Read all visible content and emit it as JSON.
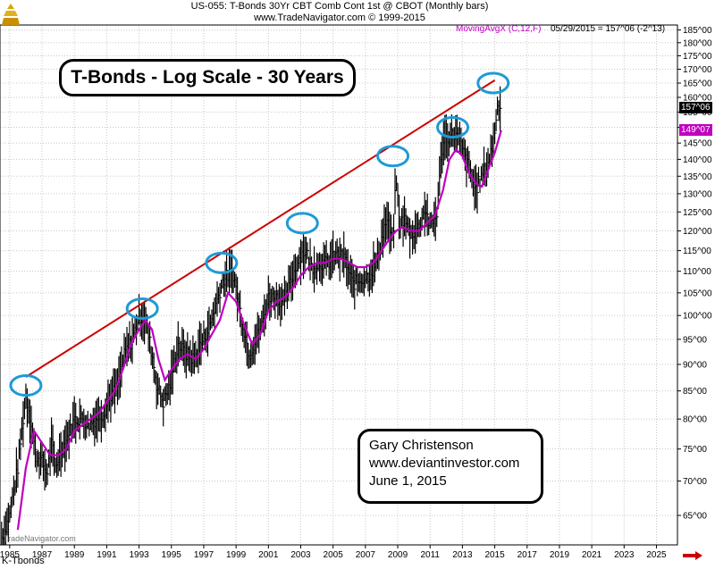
{
  "header": {
    "line1": "US-055:  T-Bonds 30Yr CBT Comb Cont 1st @ CBOT  (Monthly bars)",
    "line2": "www.TradeNavigator.com © 1999-2015"
  },
  "indicator": {
    "label": "MovingAvgX (C,12,F)",
    "value_text": "05/29/2015 = 157^06 (-2^13)"
  },
  "price_tags": {
    "last": "157^06",
    "ma": "149^07"
  },
  "title_box": "T-Bonds - Log Scale - 30 Years",
  "author": {
    "name": "Gary Christenson",
    "site": "www.deviantinvestor.com",
    "date": "June 1, 2015"
  },
  "footer_label": "K-Tbonds",
  "watermark": "TradeNavigator.com",
  "colors": {
    "bars": "#000000",
    "moving_average": "#c000c0",
    "trendline": "#cc0000",
    "circles": "#1e9ad6",
    "grid": "#c8c8c8"
  },
  "icons": {
    "logo": "gold-pyramid-icon",
    "scroll": "red-arrow-icon"
  },
  "chart_data": {
    "type": "line",
    "y_scale": "log",
    "ylim": [
      61,
      187
    ],
    "xlim": [
      1984.4,
      2026.3
    ],
    "x_ticks": [
      "1985",
      "1987",
      "1989",
      "1991",
      "1993",
      "1995",
      "1997",
      "1999",
      "2001",
      "2003",
      "2005",
      "2007",
      "2009",
      "2011",
      "2013",
      "2015",
      "2017",
      "2019",
      "2021",
      "2023",
      "2025"
    ],
    "y_ticks": [
      "65^00",
      "70^00",
      "75^00",
      "80^00",
      "85^00",
      "90^00",
      "95^00",
      "100^00",
      "105^00",
      "110^00",
      "115^00",
      "120^00",
      "125^00",
      "130^00",
      "135^00",
      "140^00",
      "145^00",
      "150^00",
      "155^00",
      "160^00",
      "165^00",
      "170^00",
      "175^00",
      "180^00",
      "185^00"
    ],
    "grid": true,
    "series": [
      {
        "kind": "price-bars",
        "x": [
          1984.5,
          1985.0,
          1985.5,
          1986.0,
          1986.3,
          1986.6,
          1987.0,
          1987.3,
          1987.6,
          1987.8,
          1988.2,
          1988.6,
          1989.0,
          1989.5,
          1989.9,
          1990.3,
          1990.8,
          1991.2,
          1991.7,
          1992.1,
          1992.6,
          1993.0,
          1993.4,
          1993.8,
          1994.1,
          1994.5,
          1994.9,
          1995.4,
          1995.9,
          1996.4,
          1996.8,
          1997.3,
          1997.8,
          1998.2,
          1998.8,
          1999.3,
          1999.8,
          2000.1,
          2000.6,
          2001.0,
          2001.5,
          2002.0,
          2002.5,
          2003.0,
          2003.3,
          2003.7,
          2004.2,
          2004.7,
          2005.2,
          2005.7,
          2006.2,
          2006.7,
          2007.2,
          2007.7,
          2008.0,
          2008.3,
          2008.7,
          2008.9,
          2009.1,
          2009.4,
          2009.8,
          2010.3,
          2010.7,
          2011.0,
          2011.4,
          2011.8,
          2012.2,
          2012.5,
          2012.8,
          2013.2,
          2013.5,
          2013.8,
          2014.2,
          2014.6,
          2014.9,
          2015.2,
          2015.4
        ],
        "y": [
          62,
          65,
          72,
          84,
          80,
          74,
          73,
          71,
          76,
          72,
          75,
          77,
          80,
          80,
          79,
          80,
          81,
          84,
          86,
          92,
          95,
          100,
          99,
          92,
          86,
          83,
          86,
          94,
          92,
          91,
          94,
          97,
          103,
          108,
          110,
          100,
          92,
          94,
          98,
          104,
          104,
          103,
          109,
          114,
          115,
          111,
          112,
          112,
          114,
          113,
          107,
          108,
          109,
          112,
          118,
          123,
          117,
          135,
          122,
          123,
          119,
          121,
          126,
          121,
          124,
          146,
          147,
          148,
          146,
          140,
          136,
          131,
          135,
          139,
          145,
          158,
          157
        ]
      },
      {
        "name": "MovingAvgX (C,12,F)",
        "x": [
          1985.5,
          1986.0,
          1986.5,
          1987.0,
          1987.5,
          1988.0,
          1988.5,
          1989.0,
          1989.5,
          1990.0,
          1990.5,
          1991.0,
          1991.5,
          1992.0,
          1992.5,
          1993.0,
          1993.4,
          1993.8,
          1994.2,
          1994.6,
          1995.0,
          1995.5,
          1996.0,
          1996.5,
          1997.0,
          1997.5,
          1998.0,
          1998.5,
          1999.0,
          1999.5,
          2000.0,
          2000.5,
          2001.0,
          2001.5,
          2002.0,
          2002.5,
          2003.0,
          2003.5,
          2004.0,
          2004.5,
          2005.0,
          2005.5,
          2006.0,
          2006.5,
          2007.0,
          2007.5,
          2008.0,
          2008.5,
          2008.9,
          2009.3,
          2009.8,
          2010.3,
          2010.8,
          2011.3,
          2011.8,
          2012.2,
          2012.6,
          2013.0,
          2013.4,
          2013.8,
          2014.2,
          2014.6,
          2015.0,
          2015.4
        ],
        "y": [
          63,
          72,
          78,
          76,
          74,
          74,
          75,
          78,
          79,
          80,
          81,
          83,
          85,
          89,
          94,
          97,
          99,
          97,
          91,
          87,
          89,
          91,
          92,
          91,
          93,
          96,
          99,
          105,
          103,
          98,
          94,
          96,
          101,
          103,
          104,
          106,
          109,
          111,
          112,
          112,
          113,
          113,
          112,
          111,
          111,
          112,
          115,
          118,
          120,
          121,
          120,
          120,
          122,
          124,
          131,
          140,
          143,
          141,
          136,
          133,
          132,
          137,
          142,
          149
        ]
      }
    ],
    "trendline": {
      "x": [
        1986.0,
        2015.0
      ],
      "y": [
        87.6,
        166.0
      ]
    },
    "circled_peaks": [
      {
        "x": 1986.0,
        "y": 86
      },
      {
        "x": 1993.2,
        "y": 101.5
      },
      {
        "x": 1998.1,
        "y": 112
      },
      {
        "x": 2003.1,
        "y": 122
      },
      {
        "x": 2008.7,
        "y": 141
      },
      {
        "x": 2012.4,
        "y": 150
      },
      {
        "x": 2014.9,
        "y": 165
      }
    ]
  }
}
